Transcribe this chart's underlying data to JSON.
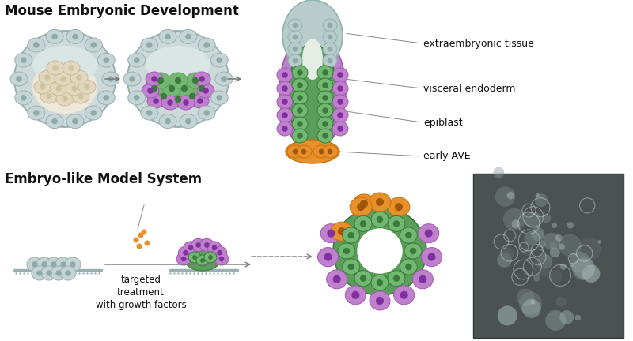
{
  "title_top": "Mouse Embryonic Development",
  "title_bottom": "Embryo-like Model System",
  "labels": {
    "extraembryonic": "extraembryonic tissue",
    "visceral": "visceral endoderm",
    "epiblast": "epiblast",
    "early_ave": "early AVE",
    "treatment": "targeted\ntreatment\nwith growth factors"
  },
  "colors": {
    "grey_outer": "#9ab0b0",
    "grey_light": "#ccdada",
    "grey_fill": "#bdd0d0",
    "grey_cell_face": "#c5d5d5",
    "cream_cells": "#e2d8be",
    "cream_fill": "#ede8d8",
    "cream_nucleus": "#cfc4a0",
    "green_epiblast": "#5a9e5a",
    "green_dark": "#3a7a3a",
    "green_light": "#72b872",
    "purple_ve": "#a855b8",
    "purple_light": "#bf80cc",
    "purple_dark": "#8030a0",
    "orange_ave": "#e8902a",
    "orange_dark": "#c87010",
    "orange_nucleus": "#a05808",
    "white": "#ffffff",
    "black": "#111111",
    "arrow_color": "#777777",
    "line_color": "#888888",
    "background": "#ffffff",
    "extrae_fill": "#b8cccc",
    "extrae_edge": "#90b0b0",
    "extrae_nucleus": "#90aaaa"
  },
  "font_sizes": {
    "title": 12,
    "label": 9
  }
}
